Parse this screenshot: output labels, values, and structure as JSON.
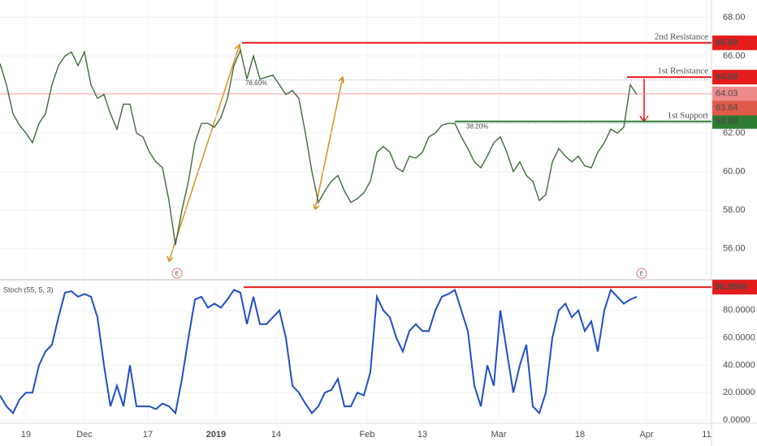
{
  "chart_data": [
    {
      "type": "line",
      "xlim": [
        0,
        219
      ],
      "ylim": [
        54.6,
        68.9
      ],
      "yticks": [
        {
          "value": 56,
          "label": "56.00"
        },
        {
          "value": 58,
          "label": "58.00"
        },
        {
          "value": 60,
          "label": "60.00"
        },
        {
          "value": 62,
          "label": "62.00"
        },
        {
          "value": 66,
          "label": "66.00"
        },
        {
          "value": 68,
          "label": "68.00"
        }
      ],
      "xticks": [
        {
          "value": 8,
          "label": "19"
        },
        {
          "value": 26,
          "label": "Dec"
        },
        {
          "value": 45.5,
          "label": "17"
        },
        {
          "value": 66.5,
          "label": "2019"
        },
        {
          "value": 85,
          "label": "14"
        },
        {
          "value": 113,
          "label": "Feb"
        },
        {
          "value": 130,
          "label": "13"
        },
        {
          "value": 153.5,
          "label": "Mar"
        },
        {
          "value": 178.5,
          "label": "18"
        },
        {
          "value": 199,
          "label": "Apr"
        },
        {
          "value": 217.5,
          "label": "11"
        }
      ],
      "series": [
        {
          "color": "#3f6b3a",
          "x": [
            0,
            2,
            4,
            6,
            8,
            10,
            12,
            14,
            16,
            18,
            20,
            22,
            24,
            26,
            28,
            30,
            32,
            34,
            36,
            38,
            40,
            42,
            44,
            46,
            48,
            50,
            52,
            54,
            56,
            58,
            60,
            62,
            64,
            66,
            68,
            70,
            72,
            74,
            76,
            78,
            80,
            82,
            84,
            86,
            88,
            90,
            92,
            94,
            96,
            98,
            100,
            102,
            104,
            106,
            108,
            110,
            112,
            114,
            116,
            118,
            120,
            122,
            124,
            126,
            128,
            130,
            132,
            134,
            136,
            138,
            140,
            142,
            144,
            146,
            148,
            150,
            152,
            154,
            156,
            158,
            160,
            162,
            164,
            166,
            168,
            170,
            172,
            174,
            176,
            178,
            180,
            182,
            184,
            186,
            188,
            190,
            192,
            194,
            196
          ],
          "values": [
            65.6,
            64.5,
            63.0,
            62.4,
            62.0,
            61.5,
            62.5,
            63.0,
            64.5,
            65.5,
            66.0,
            66.2,
            65.5,
            66.2,
            64.5,
            63.8,
            64.0,
            63.0,
            62.2,
            63.5,
            63.5,
            62.0,
            61.8,
            61.0,
            60.5,
            60.2,
            58.5,
            56.2,
            58.0,
            59.5,
            61.5,
            62.5,
            62.5,
            62.3,
            62.8,
            63.8,
            65.5,
            66.3,
            64.8,
            66.0,
            64.8,
            64.9,
            65.0,
            64.5,
            64.0,
            64.2,
            63.8,
            62.0,
            60.0,
            58.4,
            59.0,
            59.5,
            59.8,
            59.0,
            58.4,
            58.6,
            58.9,
            59.5,
            61.0,
            61.3,
            61.0,
            60.2,
            60.0,
            60.8,
            60.7,
            61.0,
            61.8,
            62.0,
            62.4,
            62.5,
            62.5,
            61.8,
            61.2,
            60.5,
            60.2,
            60.8,
            61.5,
            61.8,
            61.0,
            60.0,
            60.5,
            59.8,
            59.5,
            58.5,
            58.8,
            60.5,
            61.2,
            60.8,
            60.5,
            60.8,
            60.3,
            60.2,
            61.0,
            61.5,
            62.2,
            62.0,
            62.3,
            64.5,
            64.0
          ]
        }
      ],
      "levels": [
        {
          "label": "2nd Resistance",
          "value": 66.68,
          "value_label": "66.68",
          "start": 74.5,
          "color": "#e51c1c"
        },
        {
          "label": "1st Resistance",
          "value": 64.9,
          "value_label": "64.90",
          "start": 193,
          "color": "#e51c1c"
        },
        {
          "label": "1st Support",
          "value": 62.6,
          "value_label": "62.60",
          "start": 140,
          "color": "#2e7d32"
        }
      ],
      "fib_levels": [
        {
          "label": "78.60%",
          "value": 64.75,
          "start": 72
        },
        {
          "label": "38.20%",
          "value": 62.5,
          "start": 140
        }
      ],
      "price_labels": [
        {
          "value": 64.03,
          "value_label": "64.03",
          "color": "#ef8a8a"
        },
        {
          "value": 63.84,
          "value_label": "63.84",
          "color": "#e05a4a"
        }
      ],
      "events": [
        {
          "label": "E",
          "x": 54.5
        },
        {
          "label": "E",
          "x": 197.5
        }
      ]
    },
    {
      "type": "line",
      "title": "Stoch (55, 5, 3)",
      "xlim": [
        0,
        219
      ],
      "ylim": [
        -1.2,
        101.8
      ],
      "yticks": [
        {
          "value": 0,
          "label": "0.0000"
        },
        {
          "value": 20,
          "label": "20.0000"
        },
        {
          "value": 40,
          "label": "40.0000"
        },
        {
          "value": 60,
          "label": "60.0000"
        },
        {
          "value": 80,
          "label": "80.0000"
        }
      ],
      "level": {
        "value": 96.9908,
        "start": 75,
        "color": "#e51c1c"
      },
      "series": [
        {
          "color": "#1f4fc7",
          "x": [
            0,
            2,
            4,
            6,
            8,
            10,
            12,
            14,
            16,
            18,
            20,
            22,
            24,
            26,
            28,
            30,
            32,
            34,
            36,
            38,
            40,
            42,
            44,
            46,
            48,
            50,
            52,
            54,
            56,
            58,
            60,
            62,
            64,
            66,
            68,
            70,
            72,
            74,
            76,
            78,
            80,
            82,
            84,
            86,
            88,
            90,
            92,
            94,
            96,
            98,
            100,
            102,
            104,
            106,
            108,
            110,
            112,
            114,
            116,
            118,
            120,
            122,
            124,
            126,
            128,
            130,
            132,
            134,
            136,
            138,
            140,
            142,
            144,
            146,
            148,
            150,
            152,
            154,
            156,
            158,
            160,
            162,
            164,
            166,
            168,
            170,
            172,
            174,
            176,
            178,
            180,
            182,
            184,
            186,
            188,
            190,
            192,
            194,
            196
          ],
          "values": [
            18,
            10,
            5,
            15,
            20,
            20,
            40,
            50,
            55,
            75,
            93,
            94,
            90,
            92,
            90,
            75,
            40,
            10,
            25,
            10,
            40,
            10,
            10,
            10,
            8,
            12,
            10,
            5,
            30,
            60,
            88,
            90,
            82,
            85,
            82,
            88,
            95,
            93,
            70,
            90,
            70,
            70,
            75,
            80,
            60,
            25,
            20,
            12,
            5,
            10,
            20,
            22,
            30,
            10,
            10,
            20,
            18,
            35,
            90,
            80,
            75,
            60,
            50,
            65,
            70,
            65,
            65,
            80,
            90,
            92,
            95,
            80,
            65,
            25,
            10,
            40,
            25,
            80,
            50,
            20,
            40,
            55,
            10,
            5,
            20,
            60,
            80,
            85,
            75,
            80,
            65,
            72,
            50,
            80,
            95,
            90,
            85,
            88,
            90
          ]
        }
      ]
    }
  ]
}
